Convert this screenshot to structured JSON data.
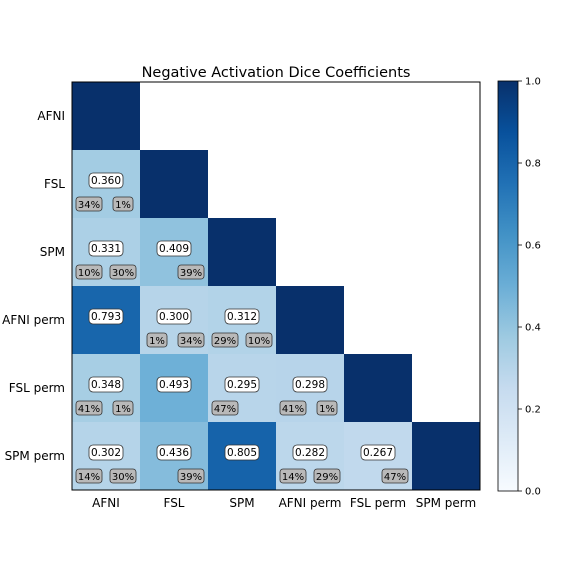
{
  "chart_data": {
    "type": "heatmap",
    "title": "Negative Activation Dice Coefficients",
    "xlabel": "",
    "ylabel": "",
    "rows": [
      "AFNI",
      "FSL",
      "SPM",
      "AFNI perm",
      "FSL perm",
      "SPM perm"
    ],
    "columns": [
      "AFNI",
      "FSL",
      "SPM",
      "AFNI perm",
      "FSL perm",
      "SPM perm"
    ],
    "colormap": "Blues",
    "value_range": [
      0.0,
      1.0
    ],
    "colorbar_ticks": [
      "0.0",
      "0.2",
      "0.4",
      "0.6",
      "0.8",
      "1.0"
    ],
    "diagonal_value": 1.0,
    "cells": [
      {
        "row": 1,
        "col": 0,
        "value": 0.36,
        "label": "0.360",
        "pct_left": "34%",
        "pct_right": "1%"
      },
      {
        "row": 2,
        "col": 0,
        "value": 0.331,
        "label": "0.331",
        "pct_left": "10%",
        "pct_right": "30%"
      },
      {
        "row": 2,
        "col": 1,
        "value": 0.409,
        "label": "0.409",
        "pct_left": "",
        "pct_right": "39%"
      },
      {
        "row": 3,
        "col": 0,
        "value": 0.793,
        "label": "0.793",
        "pct_left": "",
        "pct_right": ""
      },
      {
        "row": 3,
        "col": 1,
        "value": 0.3,
        "label": "0.300",
        "pct_left": "1%",
        "pct_right": "34%"
      },
      {
        "row": 3,
        "col": 2,
        "value": 0.312,
        "label": "0.312",
        "pct_left": "29%",
        "pct_right": "10%"
      },
      {
        "row": 4,
        "col": 0,
        "value": 0.348,
        "label": "0.348",
        "pct_left": "41%",
        "pct_right": "1%"
      },
      {
        "row": 4,
        "col": 1,
        "value": 0.493,
        "label": "0.493",
        "pct_left": "",
        "pct_right": ""
      },
      {
        "row": 4,
        "col": 2,
        "value": 0.295,
        "label": "0.295",
        "pct_left": "47%",
        "pct_right": ""
      },
      {
        "row": 4,
        "col": 3,
        "value": 0.298,
        "label": "0.298",
        "pct_left": "41%",
        "pct_right": "1%"
      },
      {
        "row": 5,
        "col": 0,
        "value": 0.302,
        "label": "0.302",
        "pct_left": "14%",
        "pct_right": "30%"
      },
      {
        "row": 5,
        "col": 1,
        "value": 0.436,
        "label": "0.436",
        "pct_left": "",
        "pct_right": "39%"
      },
      {
        "row": 5,
        "col": 2,
        "value": 0.805,
        "label": "0.805",
        "pct_left": "",
        "pct_right": ""
      },
      {
        "row": 5,
        "col": 3,
        "value": 0.282,
        "label": "0.282",
        "pct_left": "14%",
        "pct_right": "29%"
      },
      {
        "row": 5,
        "col": 4,
        "value": 0.267,
        "label": "0.267",
        "pct_left": "",
        "pct_right": "47%"
      }
    ],
    "grid": false,
    "legend": "colorbar-right"
  }
}
